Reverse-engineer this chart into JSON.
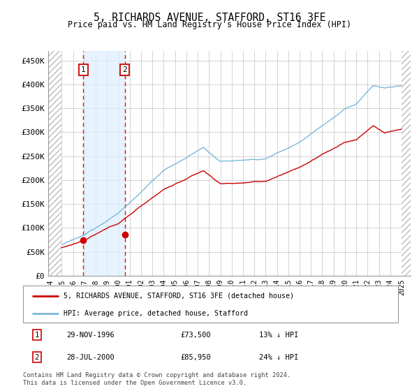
{
  "title": "5, RICHARDS AVENUE, STAFFORD, ST16 3FE",
  "subtitle": "Price paid vs. HM Land Registry's House Price Index (HPI)",
  "ylim": [
    0,
    470000
  ],
  "yticks": [
    0,
    50000,
    100000,
    150000,
    200000,
    250000,
    300000,
    350000,
    400000,
    450000
  ],
  "ytick_labels": [
    "£0",
    "£50K",
    "£100K",
    "£150K",
    "£200K",
    "£250K",
    "£300K",
    "£350K",
    "£400K",
    "£450K"
  ],
  "hpi_color": "#7bb8d8",
  "price_color": "#cc0000",
  "sale1_date": 1996.91,
  "sale1_price": 73500,
  "sale2_date": 2000.57,
  "sale2_price": 85950,
  "legend_label1": "5, RICHARDS AVENUE, STAFFORD, ST16 3FE (detached house)",
  "legend_label2": "HPI: Average price, detached house, Stafford",
  "table_row1": [
    "1",
    "29-NOV-1996",
    "£73,500",
    "13% ↓ HPI"
  ],
  "table_row2": [
    "2",
    "28-JUL-2000",
    "£85,950",
    "24% ↓ HPI"
  ],
  "footnote": "Contains HM Land Registry data © Crown copyright and database right 2024.\nThis data is licensed under the Open Government Licence v3.0.",
  "bg_color": "#ffffff",
  "grid_color": "#cccccc",
  "shade_color": "#ddeeff",
  "hatch_color": "#cccccc"
}
